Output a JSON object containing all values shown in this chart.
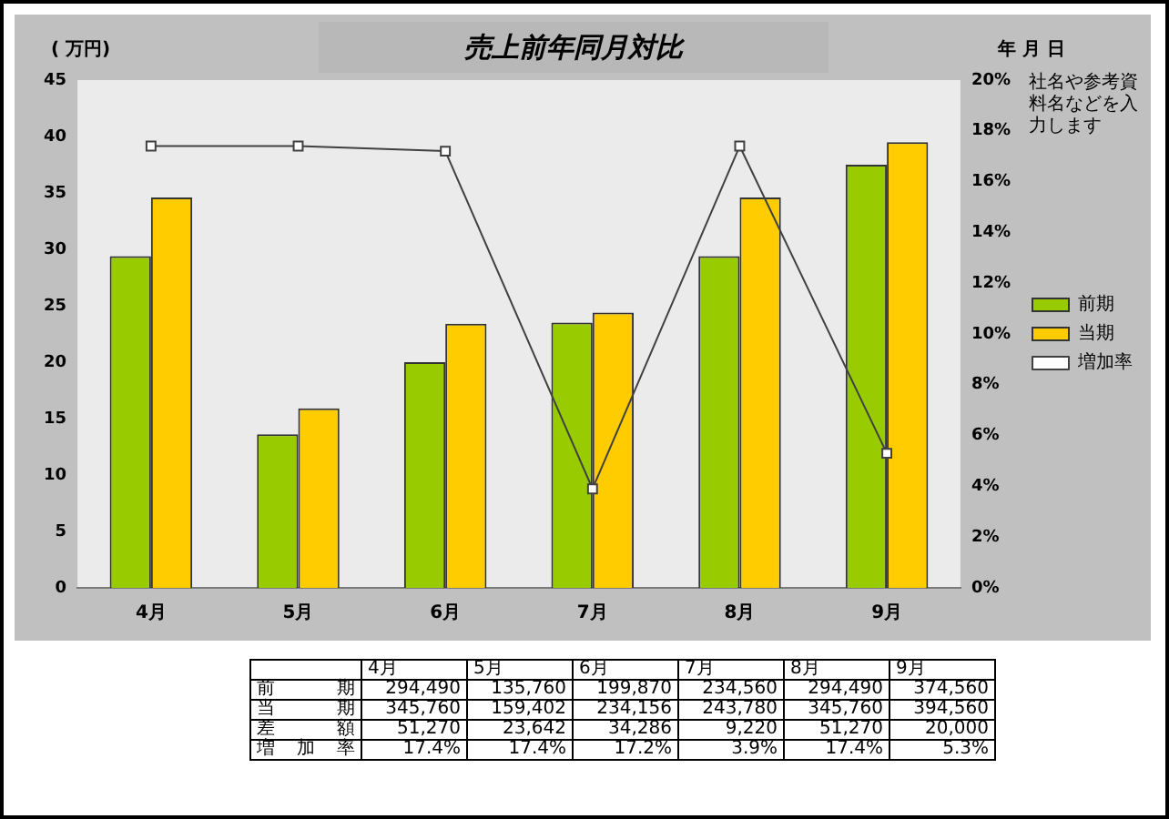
{
  "chart_data": {
    "type": "bar",
    "title": "売上前年同月対比",
    "ylabel": "( 万円)",
    "categories": [
      "4月",
      "5月",
      "6月",
      "7月",
      "8月",
      "9月"
    ],
    "series": [
      {
        "name": "前期",
        "color": "#99cc00",
        "values": [
          29.4,
          13.6,
          20.0,
          23.5,
          29.4,
          37.5
        ]
      },
      {
        "name": "当期",
        "color": "#ffcc00",
        "values": [
          34.6,
          15.9,
          23.4,
          24.4,
          34.6,
          39.5
        ]
      },
      {
        "name": "増加率",
        "type": "line",
        "axis": "y2",
        "color": "#404040",
        "marker": "square",
        "values": [
          17.4,
          17.4,
          17.2,
          3.9,
          17.4,
          5.3
        ]
      }
    ],
    "ylim": [
      0,
      45
    ],
    "yticks": [
      0,
      5,
      10,
      15,
      20,
      25,
      30,
      35,
      40,
      45
    ],
    "y2lim": [
      0,
      20
    ],
    "y2ticks": [
      {
        "value": 0,
        "label": "0%"
      },
      {
        "value": 2,
        "label": "2%"
      },
      {
        "value": 4,
        "label": "4%"
      },
      {
        "value": 6,
        "label": "6%"
      },
      {
        "value": 8,
        "label": "8%"
      },
      {
        "value": 10,
        "label": "10%"
      },
      {
        "value": 12,
        "label": "12%"
      },
      {
        "value": 14,
        "label": "14%"
      },
      {
        "value": 16,
        "label": "16%"
      },
      {
        "value": 18,
        "label": "18%"
      },
      {
        "value": 20,
        "label": "20%"
      }
    ],
    "legend": "right",
    "grid": false,
    "annotations": [
      "年 月 日",
      "社名や参考資料名などを入力します",
      "前期",
      "294,490",
      "135,760",
      "199,870",
      "234,560",
      "294,490",
      "374,560",
      "当期",
      "345,760",
      "159,402",
      "234,156",
      "243,780",
      "345,760",
      "394,560",
      "差額",
      "51,270",
      "23,642",
      "34,286",
      "9,220",
      "51,270",
      "20,000",
      "増加率",
      "17.4%",
      "17.4%",
      "17.2%",
      "3.9%",
      "17.4%",
      "5.3%"
    ]
  }
}
